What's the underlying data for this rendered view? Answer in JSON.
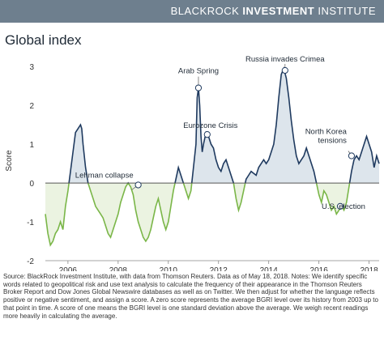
{
  "brand": {
    "light": "BLACKROCK",
    "bold": "INVESTMENT",
    "rest": "INSTITUTE"
  },
  "chart_title": "Global index",
  "footnote": "Source: BlackRock Investment Institute, with data from Thomson Reuters. Data as of May 18, 2018. Notes: We identify specific words related to geopolitical risk and use text analysis to calculate the frequency of their appearance in the Thomson Reuters Broker Report and Dow Jones Global Newswire databases as well as on Twitter. We then adjust for whether the language reflects positive or negative sentiment, and assign a score. A zero score represents the average BGRI level over its history from 2003 up to that point in time. A score of one means the BGRI level is one standard deviation above the average. We weigh recent readings more heavily in calculating the average.",
  "colors": {
    "positive_line": "#1f3a5f",
    "positive_fill": "#dde5ec",
    "negative_line": "#7ab648",
    "negative_fill": "#ebf3e1",
    "header": "#6e7f8e"
  },
  "chart_data": {
    "type": "area",
    "ylabel": "Score",
    "xlabel": "",
    "xlim": [
      2005.1,
      2018.4
    ],
    "ylim": [
      -2,
      3.15
    ],
    "x_ticks": [
      2006,
      2008,
      2010,
      2012,
      2014,
      2016,
      2018
    ],
    "x_tick_labels": [
      "2006",
      "2008",
      "2010",
      "2012",
      "2014",
      "2016",
      "2018"
    ],
    "y_ticks": [
      -2,
      -1,
      0,
      1,
      2,
      3
    ],
    "y_tick_labels": [
      "-2",
      "-1",
      "0",
      "1",
      "2",
      "3"
    ],
    "grid": false,
    "legend": "none",
    "series": [
      {
        "x": [
          2005.1,
          2005.2,
          2005.3,
          2005.4,
          2005.5,
          2005.6,
          2005.7,
          2005.8,
          2005.9,
          2006.0,
          2006.1,
          2006.2,
          2006.3,
          2006.4,
          2006.5,
          2006.55,
          2006.6,
          2006.7,
          2006.8,
          2006.9,
          2007.0,
          2007.1,
          2007.2,
          2007.3,
          2007.4,
          2007.5,
          2007.6,
          2007.7,
          2007.8,
          2007.9,
          2008.0,
          2008.1,
          2008.2,
          2008.3,
          2008.4,
          2008.5,
          2008.6,
          2008.7,
          2008.8,
          2008.9,
          2009.0,
          2009.1,
          2009.2,
          2009.3,
          2009.4,
          2009.5,
          2009.6,
          2009.7,
          2009.8,
          2009.9,
          2010.0,
          2010.1,
          2010.2,
          2010.3,
          2010.4,
          2010.5,
          2010.6,
          2010.7,
          2010.8,
          2010.9,
          2011.0,
          2011.1,
          2011.15,
          2011.2,
          2011.25,
          2011.3,
          2011.35,
          2011.4,
          2011.5,
          2011.6,
          2011.7,
          2011.8,
          2011.9,
          2012.0,
          2012.1,
          2012.2,
          2012.3,
          2012.4,
          2012.5,
          2012.6,
          2012.7,
          2012.8,
          2012.9,
          2013.0,
          2013.1,
          2013.2,
          2013.3,
          2013.4,
          2013.5,
          2013.6,
          2013.7,
          2013.8,
          2013.9,
          2014.0,
          2014.1,
          2014.2,
          2014.3,
          2014.4,
          2014.5,
          2014.6,
          2014.7,
          2014.8,
          2014.9,
          2015.0,
          2015.1,
          2015.2,
          2015.3,
          2015.4,
          2015.5,
          2015.6,
          2015.7,
          2015.8,
          2015.9,
          2016.0,
          2016.1,
          2016.2,
          2016.3,
          2016.4,
          2016.5,
          2016.6,
          2016.7,
          2016.8,
          2016.9,
          2017.0,
          2017.1,
          2017.2,
          2017.3,
          2017.4,
          2017.5,
          2017.6,
          2017.7,
          2017.8,
          2017.9,
          2018.0,
          2018.1,
          2018.2,
          2018.3,
          2018.4
        ],
        "values": [
          -0.8,
          -1.3,
          -1.6,
          -1.5,
          -1.3,
          -1.2,
          -1.0,
          -1.2,
          -0.6,
          -0.2,
          0.3,
          0.8,
          1.3,
          1.4,
          1.5,
          1.4,
          1.0,
          0.4,
          0.0,
          -0.2,
          -0.4,
          -0.6,
          -0.7,
          -0.8,
          -0.9,
          -1.1,
          -1.3,
          -1.4,
          -1.2,
          -1.0,
          -0.8,
          -0.5,
          -0.3,
          -0.1,
          0.0,
          -0.1,
          -0.3,
          -0.7,
          -1.0,
          -1.2,
          -1.4,
          -1.5,
          -1.4,
          -1.2,
          -0.9,
          -0.6,
          -0.4,
          -0.7,
          -1.0,
          -1.2,
          -1.0,
          -0.6,
          -0.2,
          0.1,
          0.4,
          0.2,
          0.0,
          -0.2,
          -0.4,
          -0.2,
          0.4,
          1.0,
          2.2,
          2.45,
          2.0,
          1.2,
          0.8,
          1.0,
          1.3,
          1.2,
          1.0,
          0.9,
          0.6,
          0.4,
          0.3,
          0.5,
          0.6,
          0.4,
          0.2,
          0.0,
          -0.4,
          -0.7,
          -0.5,
          -0.2,
          0.1,
          0.2,
          0.3,
          0.25,
          0.2,
          0.4,
          0.5,
          0.6,
          0.5,
          0.6,
          0.8,
          1.0,
          1.5,
          2.2,
          2.8,
          2.95,
          2.7,
          2.2,
          1.6,
          1.1,
          0.7,
          0.5,
          0.6,
          0.7,
          0.9,
          0.7,
          0.5,
          0.3,
          0.0,
          -0.3,
          -0.5,
          -0.2,
          -0.3,
          -0.5,
          -0.7,
          -0.6,
          -0.8,
          -0.7,
          -0.6,
          -0.7,
          -0.5,
          -0.1,
          0.3,
          0.6,
          0.7,
          0.6,
          0.8,
          1.0,
          1.2,
          1.0,
          0.8,
          0.4,
          0.7,
          0.5
        ]
      }
    ],
    "annotations": [
      {
        "label": "Lehman collapse",
        "x": 2008.8,
        "y": -0.05
      },
      {
        "label": "Arab Spring",
        "x": 2011.2,
        "y": 2.45
      },
      {
        "label": "Eurozone Crisis",
        "x": 2011.55,
        "y": 1.25
      },
      {
        "label": "Russia invades Crimea",
        "x": 2014.65,
        "y": 2.9
      },
      {
        "label": "North Korea tensions",
        "x": 2017.3,
        "y": 0.7
      },
      {
        "label": "U.S. election",
        "x": 2016.85,
        "y": -0.6
      }
    ]
  }
}
